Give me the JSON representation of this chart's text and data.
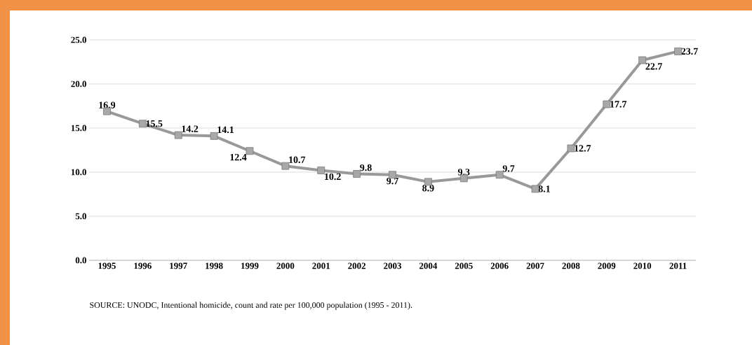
{
  "chart_data": {
    "type": "line",
    "categories": [
      "1995",
      "1996",
      "1997",
      "1998",
      "1999",
      "2000",
      "2001",
      "2002",
      "2003",
      "2004",
      "2005",
      "2006",
      "2007",
      "2008",
      "2009",
      "2010",
      "2011"
    ],
    "series": [
      {
        "color": "#999999",
        "values": [
          16.9,
          15.5,
          14.2,
          14.1,
          12.4,
          10.7,
          10.2,
          9.8,
          9.7,
          8.9,
          9.3,
          9.7,
          8.1,
          12.7,
          17.7,
          22.7,
          23.7
        ]
      }
    ],
    "ylim": [
      0,
      25
    ],
    "yticks": [
      {
        "value": 0,
        "label": "0.0"
      },
      {
        "value": 5,
        "label": "5.0"
      },
      {
        "value": 10,
        "label": "10.0"
      },
      {
        "value": 15,
        "label": "15.0"
      },
      {
        "value": 20,
        "label": "20.0"
      },
      {
        "value": 25,
        "label": "25.0"
      }
    ],
    "grid": "y",
    "marker": "square",
    "line_style": "solid",
    "data_labels": true,
    "annotations": [
      "SOURCE: UNODC, Intentional homicide, count and rate per 100,000 population (1995 - 2011)."
    ]
  }
}
